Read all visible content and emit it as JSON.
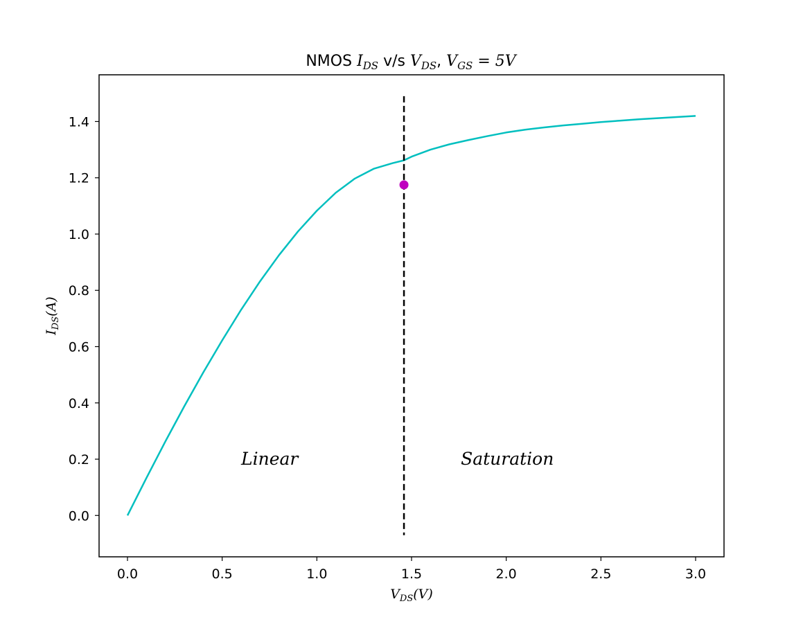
{
  "chart_data": {
    "type": "line",
    "title": "NMOS I_DS v/s V_DS, V_GS=5V",
    "title_parts": {
      "prefix": "NMOS ",
      "y_sym": "I",
      "y_sub": "DS",
      "mid": " v/s ",
      "x_sym": "V",
      "x_sub": "DS",
      "sep": ", ",
      "gs_sym": "V",
      "gs_sub": "GS",
      "gs_eq": " = 5V"
    },
    "xlabel": "V_DS(V)",
    "xlabel_parts": {
      "sym": "V",
      "sub": "DS",
      "unit": "(V)"
    },
    "ylabel": "I_DS(A)",
    "ylabel_parts": {
      "sym": "I",
      "sub": "DS",
      "unit": "(A)"
    },
    "xlim": [
      -0.15,
      3.15
    ],
    "ylim": [
      -0.147,
      1.566
    ],
    "xticks": [
      0.0,
      0.5,
      1.0,
      1.5,
      2.0,
      2.5,
      3.0
    ],
    "xtick_labels": [
      "0.0",
      "0.5",
      "1.0",
      "1.5",
      "2.0",
      "2.5",
      "3.0"
    ],
    "yticks": [
      0.0,
      0.2,
      0.4,
      0.6,
      0.8,
      1.0,
      1.2,
      1.4
    ],
    "ytick_labels": [
      "0.0",
      "0.2",
      "0.4",
      "0.6",
      "0.8",
      "1.0",
      "1.2",
      "1.4"
    ],
    "grid": false,
    "series": [
      {
        "color": "#00bfbf",
        "x": [
          0.0,
          0.1,
          0.2,
          0.3,
          0.4,
          0.5,
          0.6,
          0.7,
          0.8,
          0.9,
          1.0,
          1.1,
          1.2,
          1.3,
          1.4,
          1.46,
          1.5,
          1.6,
          1.7,
          1.8,
          1.9,
          2.0,
          2.1,
          2.2,
          2.3,
          2.4,
          2.5,
          2.6,
          2.7,
          2.8,
          2.9,
          3.0
        ],
        "y": [
          0.0,
          0.133,
          0.263,
          0.388,
          0.508,
          0.622,
          0.731,
          0.832,
          0.925,
          1.009,
          1.083,
          1.147,
          1.197,
          1.232,
          1.252,
          1.262,
          1.275,
          1.3,
          1.319,
          1.334,
          1.348,
          1.361,
          1.371,
          1.379,
          1.386,
          1.392,
          1.398,
          1.403,
          1.408,
          1.412,
          1.416,
          1.42
        ]
      }
    ],
    "vline": {
      "x": 1.46,
      "y_range": [
        -0.07,
        1.49
      ],
      "color": "#000000",
      "style": "dashed"
    },
    "marker": {
      "x": 1.46,
      "y": 1.175,
      "color": "#bf00bf"
    },
    "annotations": [
      {
        "text": "Linear",
        "x": 0.6,
        "y": 0.2
      },
      {
        "text": "Saturation",
        "x": 1.76,
        "y": 0.2
      }
    ]
  }
}
